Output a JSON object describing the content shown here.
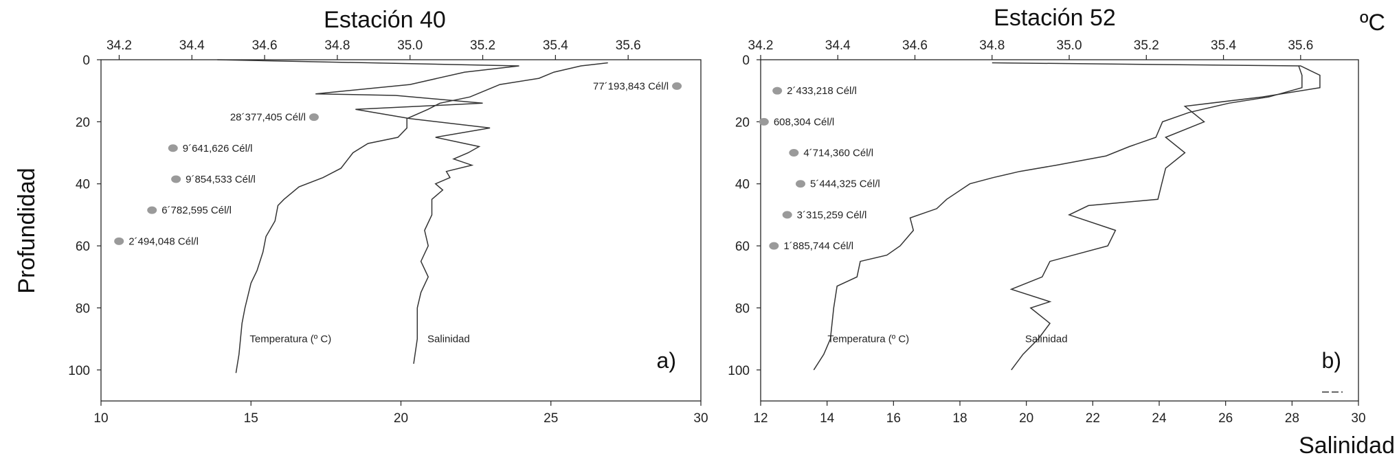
{
  "y_axis_label": "Profundidad",
  "corner_unit_label": "ºC",
  "bottom_axis_label": "Salinidad",
  "chart_data": [
    {
      "type": "line",
      "title": "Estación 40",
      "panel_label": "a)",
      "ylim": [
        0,
        110
      ],
      "y_ticks": [
        "0",
        "20",
        "40",
        "60",
        "80",
        "100"
      ],
      "bottom_axis": {
        "lim": [
          10,
          30
        ],
        "ticks": [
          "10",
          "15",
          "20",
          "25",
          "30"
        ]
      },
      "top_axis": {
        "lim": [
          34.15,
          35.8
        ],
        "ticks": [
          "34.2",
          "34.4",
          "34.6",
          "34.8",
          "35.0",
          "35.2",
          "35.4",
          "35.6"
        ]
      },
      "series": [
        {
          "name": "Temperatura (º C)",
          "axis": "bottom",
          "points": [
            [
              26.9,
              1
            ],
            [
              26,
              2
            ],
            [
              25.1,
              4
            ],
            [
              24.6,
              6
            ],
            [
              23.3,
              8
            ],
            [
              22.3,
              12
            ],
            [
              21.3,
              14
            ],
            [
              20.9,
              16
            ],
            [
              20.2,
              19
            ],
            [
              20.2,
              22
            ],
            [
              19.9,
              25
            ],
            [
              18.9,
              27
            ],
            [
              18.4,
              30
            ],
            [
              18,
              35
            ],
            [
              17.4,
              38
            ],
            [
              16.6,
              41
            ],
            [
              16.1,
              45
            ],
            [
              15.9,
              47
            ],
            [
              15.8,
              52
            ],
            [
              15.5,
              57
            ],
            [
              15.4,
              62
            ],
            [
              15.2,
              68
            ],
            [
              15,
              72
            ],
            [
              14.9,
              76
            ],
            [
              14.8,
              80
            ],
            [
              14.7,
              85
            ],
            [
              14.6,
              95
            ],
            [
              14.5,
              101
            ]
          ]
        },
        {
          "name": "Salinidad",
          "axis": "top",
          "points": [
            [
              34.47,
              0
            ],
            [
              35.3,
              2
            ],
            [
              35.15,
              4
            ],
            [
              35.0,
              8
            ],
            [
              34.74,
              11
            ],
            [
              34.96,
              11.5
            ],
            [
              35.2,
              14
            ],
            [
              34.85,
              16
            ],
            [
              35.0,
              19
            ],
            [
              35.22,
              22
            ],
            [
              35.07,
              25
            ],
            [
              35.19,
              28
            ],
            [
              35.16,
              30
            ],
            [
              35.12,
              32
            ],
            [
              35.17,
              34
            ],
            [
              35.1,
              36
            ],
            [
              35.11,
              38
            ],
            [
              35.07,
              40
            ],
            [
              35.09,
              42
            ],
            [
              35.06,
              45
            ],
            [
              35.06,
              50
            ],
            [
              35.04,
              55
            ],
            [
              35.05,
              60
            ],
            [
              35.03,
              65
            ],
            [
              35.05,
              70
            ],
            [
              35.03,
              75
            ],
            [
              35.02,
              80
            ],
            [
              35.02,
              90
            ],
            [
              35.01,
              98
            ]
          ]
        }
      ],
      "annotations": [
        {
          "text": "77´193,843 Cél/l",
          "x": 29.2,
          "y": 8.5
        },
        {
          "text": "28´377,405 Cél/l",
          "x": 17.1,
          "y": 18.5
        },
        {
          "text": "9´641,626 Cél/l",
          "x": 12.4,
          "y": 28.5
        },
        {
          "text": "9´854,533 Cél/l",
          "x": 12.5,
          "y": 38.5
        },
        {
          "text": "6´782,595 Cél/l",
          "x": 11.7,
          "y": 48.5
        },
        {
          "text": "2´494,048 Cél/l",
          "x": 10.6,
          "y": 58.5
        }
      ]
    },
    {
      "type": "line",
      "title": "Estación 52",
      "panel_label": "b)",
      "ylim": [
        0,
        110
      ],
      "y_ticks": [
        "0",
        "20",
        "40",
        "60",
        "80",
        "100"
      ],
      "bottom_axis": {
        "lim": [
          12,
          30
        ],
        "ticks": [
          "12",
          "14",
          "16",
          "18",
          "20",
          "22",
          "24",
          "26",
          "28",
          "30"
        ]
      },
      "top_axis": {
        "lim": [
          34.2,
          35.75
        ],
        "ticks": [
          "34.2",
          "34.4",
          "34.6",
          "34.8",
          "35.0",
          "35.2",
          "35.4",
          "35.6"
        ]
      },
      "series": [
        {
          "name": "Temperatura (º C)",
          "axis": "bottom",
          "points": [
            [
              28.2,
              2
            ],
            [
              28.3,
              5
            ],
            [
              28.3,
              9
            ],
            [
              27.3,
              12
            ],
            [
              26.1,
              14
            ],
            [
              24.9,
              17
            ],
            [
              24.1,
              20
            ],
            [
              23.9,
              25
            ],
            [
              23.1,
              28
            ],
            [
              22.4,
              31
            ],
            [
              20.9,
              34
            ],
            [
              19.8,
              36
            ],
            [
              19.0,
              38
            ],
            [
              18.3,
              40
            ],
            [
              17.6,
              45
            ],
            [
              17.3,
              48
            ],
            [
              16.5,
              51
            ],
            [
              16.6,
              55
            ],
            [
              16.2,
              60
            ],
            [
              15.8,
              63
            ],
            [
              15.0,
              65
            ],
            [
              14.9,
              70
            ],
            [
              14.3,
              73
            ],
            [
              14.2,
              80
            ],
            [
              14.1,
              90
            ],
            [
              13.9,
              95
            ],
            [
              13.6,
              100
            ]
          ]
        },
        {
          "name": "Salinidad",
          "axis": "top",
          "points": [
            [
              34.8,
              1
            ],
            [
              35.6,
              2
            ],
            [
              35.65,
              5
            ],
            [
              35.65,
              9
            ],
            [
              35.5,
              12
            ],
            [
              35.3,
              15
            ],
            [
              35.35,
              20
            ],
            [
              35.25,
              25
            ],
            [
              35.3,
              30
            ],
            [
              35.25,
              35
            ],
            [
              35.24,
              40
            ],
            [
              35.23,
              45
            ],
            [
              35.05,
              47
            ],
            [
              35.0,
              50
            ],
            [
              35.12,
              55
            ],
            [
              35.1,
              60
            ],
            [
              34.95,
              65
            ],
            [
              34.93,
              70
            ],
            [
              34.85,
              74
            ],
            [
              34.95,
              78
            ],
            [
              34.9,
              80
            ],
            [
              34.95,
              85
            ],
            [
              34.92,
              90
            ],
            [
              34.88,
              95
            ],
            [
              34.85,
              100
            ]
          ]
        }
      ],
      "annotations": [
        {
          "text": "2´433,218 Cél/l",
          "x": 12.5,
          "y": 10
        },
        {
          "text": "608,304 Cél/l",
          "x": 12.1,
          "y": 20
        },
        {
          "text": "4´714,360 Cél/l",
          "x": 13.0,
          "y": 30
        },
        {
          "text": "5´444,325 Cél/l",
          "x": 13.2,
          "y": 40
        },
        {
          "text": "3´315,259 Cél/l",
          "x": 12.8,
          "y": 50
        },
        {
          "text": "1´885,744 Cél/l",
          "x": 12.4,
          "y": 60
        }
      ]
    }
  ]
}
